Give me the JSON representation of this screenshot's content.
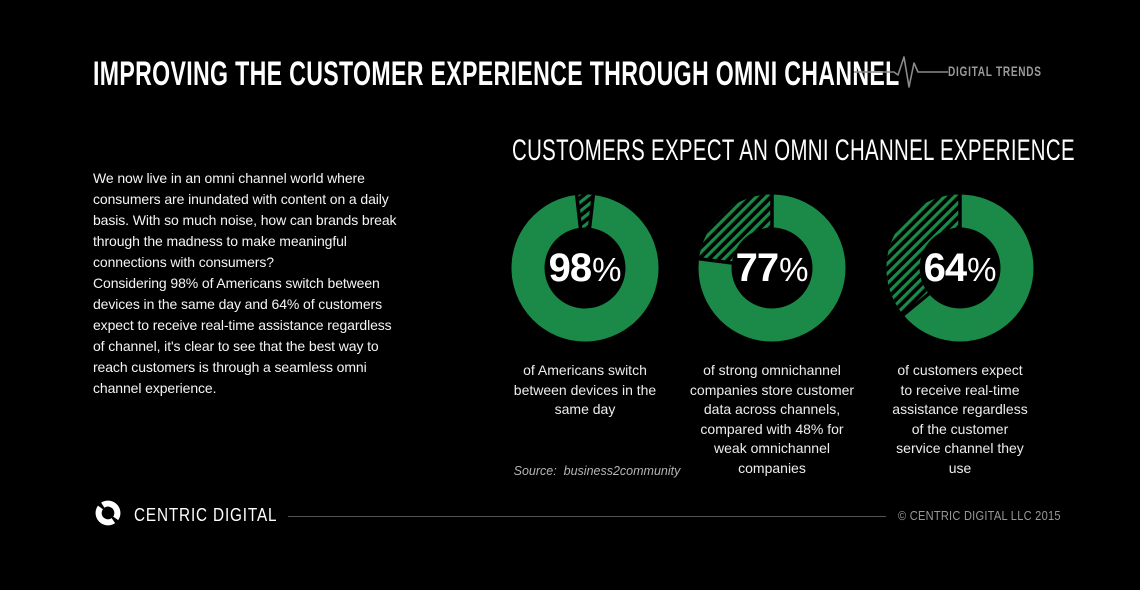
{
  "page": {
    "background_color": "#000000",
    "text_color": "#ffffff",
    "muted_color": "#9a9a9a",
    "divider_color": "#555555"
  },
  "header": {
    "title": "IMPROVING THE CUSTOMER EXPERIENCE THROUGH OMNI CHANNEL",
    "brand_label": "DIGITAL TRENDS",
    "pulse_icon": "heartbeat-line"
  },
  "intro": {
    "paragraphs": [
      "We now live in an omni channel world where\nconsumers are inundated with content on a daily\nbasis. With so much noise, how can brands break\nthrough the madness to make meaningful\nconnections with consumers?",
      "Considering 98% of Americans switch between\ndevices in the same day and 64% of customers\nexpect to receive real-time assistance regardless\nof channel, it's clear to see that the best way to\nreach customers is through a seamless omni\nchannel experience."
    ]
  },
  "chart_data": {
    "type": "pie",
    "variant": "donut",
    "title": "CUSTOMERS EXPECT AN OMNI CHANNEL EXPERIENCE",
    "start_angle": "top",
    "direction": "clockwise",
    "ring_color": "#1b8a48",
    "remainder_pattern": "diagonal-hatch",
    "value_color": "#ffffff",
    "charts": [
      {
        "value": 98,
        "display": "98",
        "unit": "%",
        "caption": "of Americans switch\nbetween devices in the\nsame day"
      },
      {
        "value": 77,
        "display": "77",
        "unit": "%",
        "caption": "of strong omnichannel\ncompanies store customer\ndata across channels,\ncompared with 48% for\nweak omnichannel\ncompanies"
      },
      {
        "value": 64,
        "display": "64",
        "unit": "%",
        "caption": "of customers expect\nto receive real-time\nassistance regardless\nof the customer\nservice channel they\nuse"
      }
    ],
    "source": "Source:  business2community"
  },
  "footer": {
    "brand": "CENTRIC DIGITAL",
    "copyright": "© CENTRIC DIGITAL LLC 2015"
  }
}
